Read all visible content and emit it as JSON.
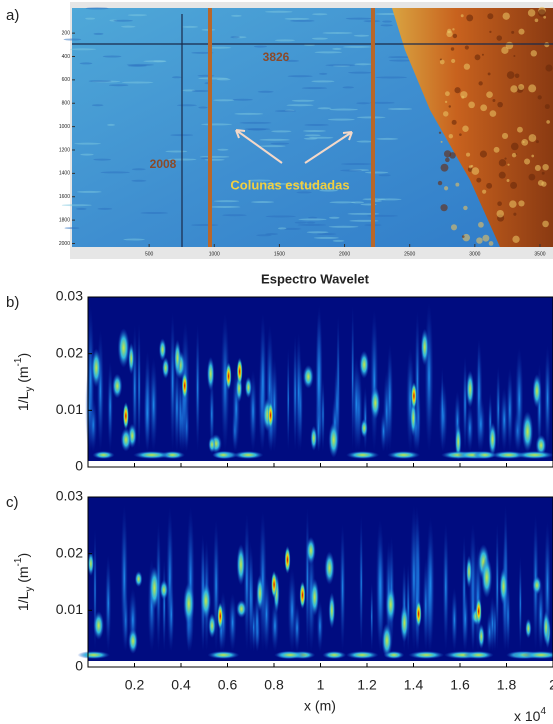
{
  "chart_data": [
    {
      "type": "image",
      "label": "a)",
      "xlim": [
        -92,
        3600
      ],
      "ylim": [
        -15,
        2030
      ],
      "xticks": [
        500,
        1000,
        1500,
        2000,
        2500,
        3000,
        3500
      ],
      "yticks": [
        200,
        400,
        600,
        800,
        1000,
        1200,
        1400,
        1600,
        1800,
        2000
      ],
      "annotations": [
        "3826",
        "2008",
        "Colunas estudadas"
      ]
    },
    {
      "type": "heatmap",
      "label": "b)",
      "title": "Espectro Wavelet",
      "ylabel_parts": [
        "1/L",
        "y",
        " (m",
        "-1",
        ")"
      ],
      "xlim": [
        0,
        2
      ],
      "ylim": [
        0,
        0.03
      ],
      "yticks": [
        0,
        0.01,
        0.02,
        0.03
      ],
      "xticks": [
        0.2,
        0.4,
        0.6,
        0.8,
        1,
        1.2,
        1.4,
        1.6,
        1.8,
        2
      ],
      "xtick_labels": false
    },
    {
      "type": "heatmap",
      "label": "c)",
      "ylabel_parts": [
        "1/L",
        "y",
        " (m",
        "-1",
        ")"
      ],
      "xlabel": "x (m)",
      "xlim": [
        0,
        2
      ],
      "ylim": [
        0,
        0.03
      ],
      "yticks": [
        0,
        0.01,
        0.02,
        0.03
      ],
      "xticks": [
        0.2,
        0.4,
        0.6,
        0.8,
        1,
        1.2,
        1.4,
        1.6,
        1.8,
        2
      ],
      "xtick_labels": true,
      "x_exponent": [
        "x 10",
        "4"
      ]
    }
  ]
}
